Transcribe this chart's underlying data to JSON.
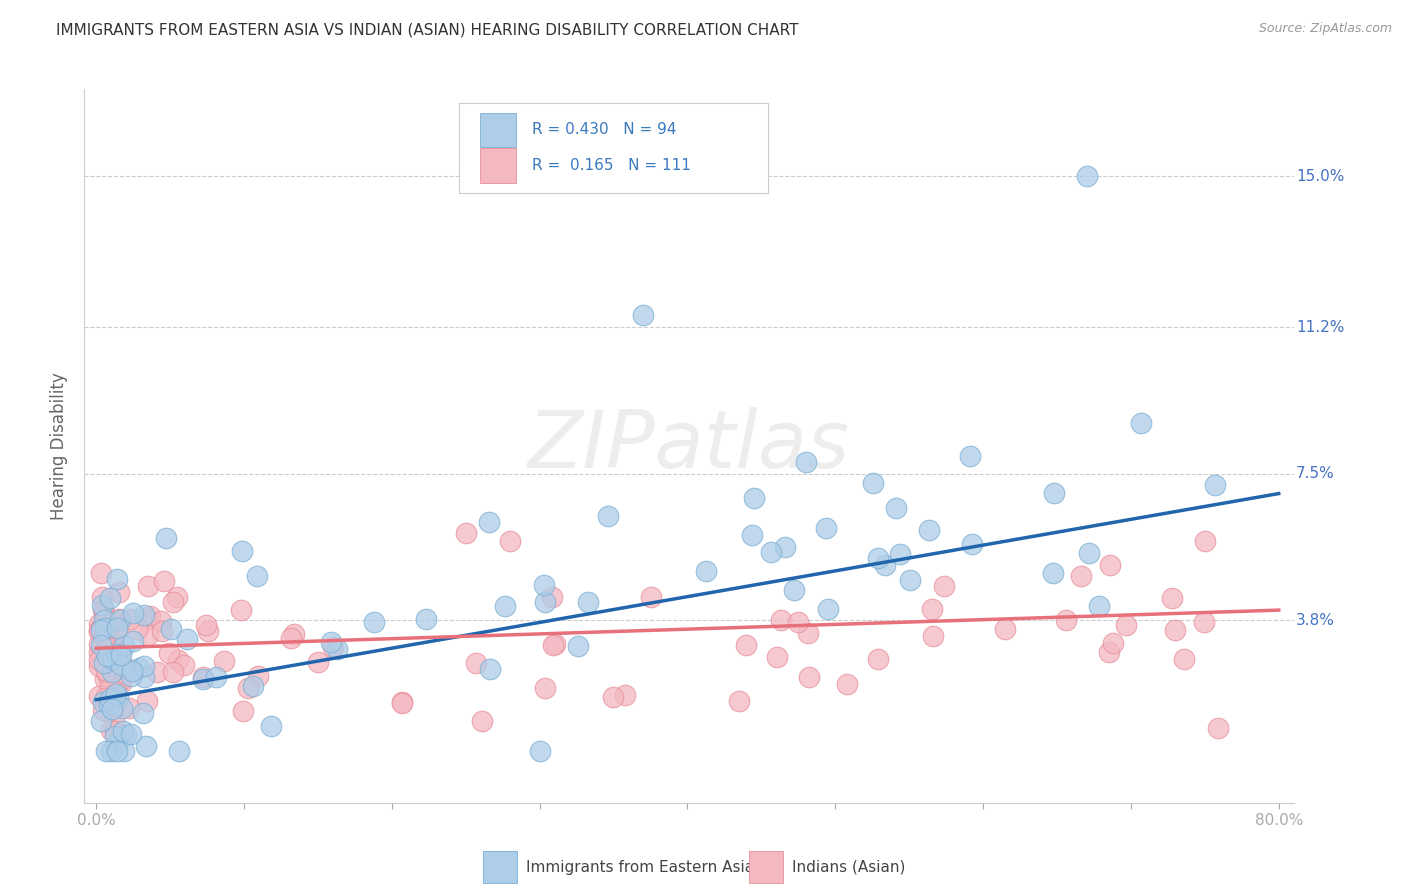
{
  "title": "IMMIGRANTS FROM EASTERN ASIA VS INDIAN (ASIAN) HEARING DISABILITY CORRELATION CHART",
  "source": "Source: ZipAtlas.com",
  "ylabel": "Hearing Disability",
  "blue_R": 0.43,
  "blue_N": 94,
  "pink_R": 0.165,
  "pink_N": 111,
  "blue_fill": "#aecde8",
  "blue_edge": "#7bafd4",
  "pink_fill": "#f4b8c1",
  "pink_edge": "#e8909a",
  "blue_line_color": "#2166ac",
  "pink_line_color": "#e8707a",
  "blue_label": "Immigrants from Eastern Asia",
  "pink_label": "Indians (Asian)",
  "watermark": "ZIPatlas",
  "background_color": "#ffffff",
  "grid_color": "#cccccc",
  "title_color": "#333333",
  "right_tick_color": "#4472c4",
  "legend_text_color": "#3a7abf"
}
